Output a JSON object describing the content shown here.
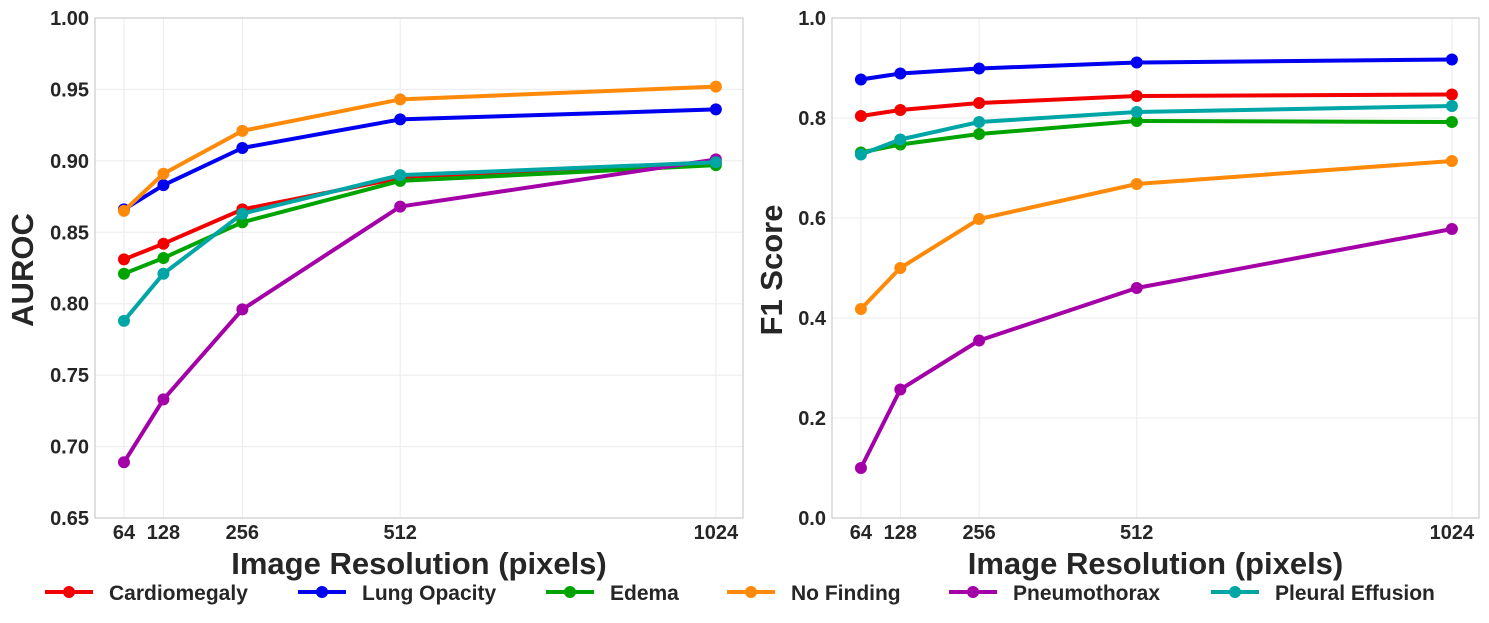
{
  "chart_data": [
    {
      "type": "line",
      "xlabel": "Image Resolution (pixels)",
      "ylabel": "AUROC",
      "x": [
        64,
        128,
        256,
        512,
        1024
      ],
      "xticks": [
        "64",
        "128",
        "256",
        "512",
        "1024"
      ],
      "xlim": [
        17,
        1068
      ],
      "ylim": [
        0.65,
        1.0
      ],
      "yticks": [
        "0.65",
        "0.70",
        "0.75",
        "0.80",
        "0.85",
        "0.90",
        "0.95",
        "1.00"
      ],
      "grid": true,
      "series": [
        {
          "name": "Cardiomegaly",
          "values": [
            0.831,
            0.842,
            0.866,
            0.888,
            0.899
          ]
        },
        {
          "name": "Lung Opacity",
          "values": [
            0.866,
            0.883,
            0.909,
            0.929,
            0.936
          ]
        },
        {
          "name": "Edema",
          "values": [
            0.821,
            0.832,
            0.857,
            0.886,
            0.897
          ]
        },
        {
          "name": "No Finding",
          "values": [
            0.865,
            0.891,
            0.921,
            0.943,
            0.952
          ]
        },
        {
          "name": "Pneumothorax",
          "values": [
            0.689,
            0.733,
            0.796,
            0.868,
            0.901
          ]
        },
        {
          "name": "Pleural Effusion",
          "values": [
            0.788,
            0.821,
            0.863,
            0.89,
            0.899
          ]
        }
      ]
    },
    {
      "type": "line",
      "xlabel": "Image Resolution (pixels)",
      "ylabel": "F1 Score",
      "x": [
        64,
        128,
        256,
        512,
        1024
      ],
      "xticks": [
        "64",
        "128",
        "256",
        "512",
        "1024"
      ],
      "xlim": [
        17,
        1068
      ],
      "ylim": [
        0.0,
        1.0
      ],
      "yticks": [
        "0.0",
        "0.2",
        "0.4",
        "0.6",
        "0.8",
        "1.0"
      ],
      "grid": true,
      "series": [
        {
          "name": "Cardiomegaly",
          "values": [
            0.804,
            0.816,
            0.83,
            0.844,
            0.847
          ]
        },
        {
          "name": "Lung Opacity",
          "values": [
            0.877,
            0.889,
            0.899,
            0.911,
            0.917
          ]
        },
        {
          "name": "Edema",
          "values": [
            0.731,
            0.747,
            0.768,
            0.794,
            0.792
          ]
        },
        {
          "name": "No Finding",
          "values": [
            0.418,
            0.5,
            0.598,
            0.668,
            0.714
          ]
        },
        {
          "name": "Pneumothorax",
          "values": [
            0.1,
            0.257,
            0.355,
            0.46,
            0.578
          ]
        },
        {
          "name": "Pleural Effusion",
          "values": [
            0.727,
            0.757,
            0.792,
            0.812,
            0.824
          ]
        }
      ]
    }
  ],
  "legend": {
    "placement": "bottom",
    "items": [
      "Cardiomegaly",
      "Lung Opacity",
      "Edema",
      "No Finding",
      "Pneumothorax",
      "Pleural Effusion"
    ]
  },
  "colors": {
    "Cardiomegaly": "#f20000",
    "Lung Opacity": "#0000f0",
    "Edema": "#00a400",
    "No Finding": "#ff8a0a",
    "Pneumothorax": "#a400a8",
    "Pleural Effusion": "#00a6a6"
  }
}
